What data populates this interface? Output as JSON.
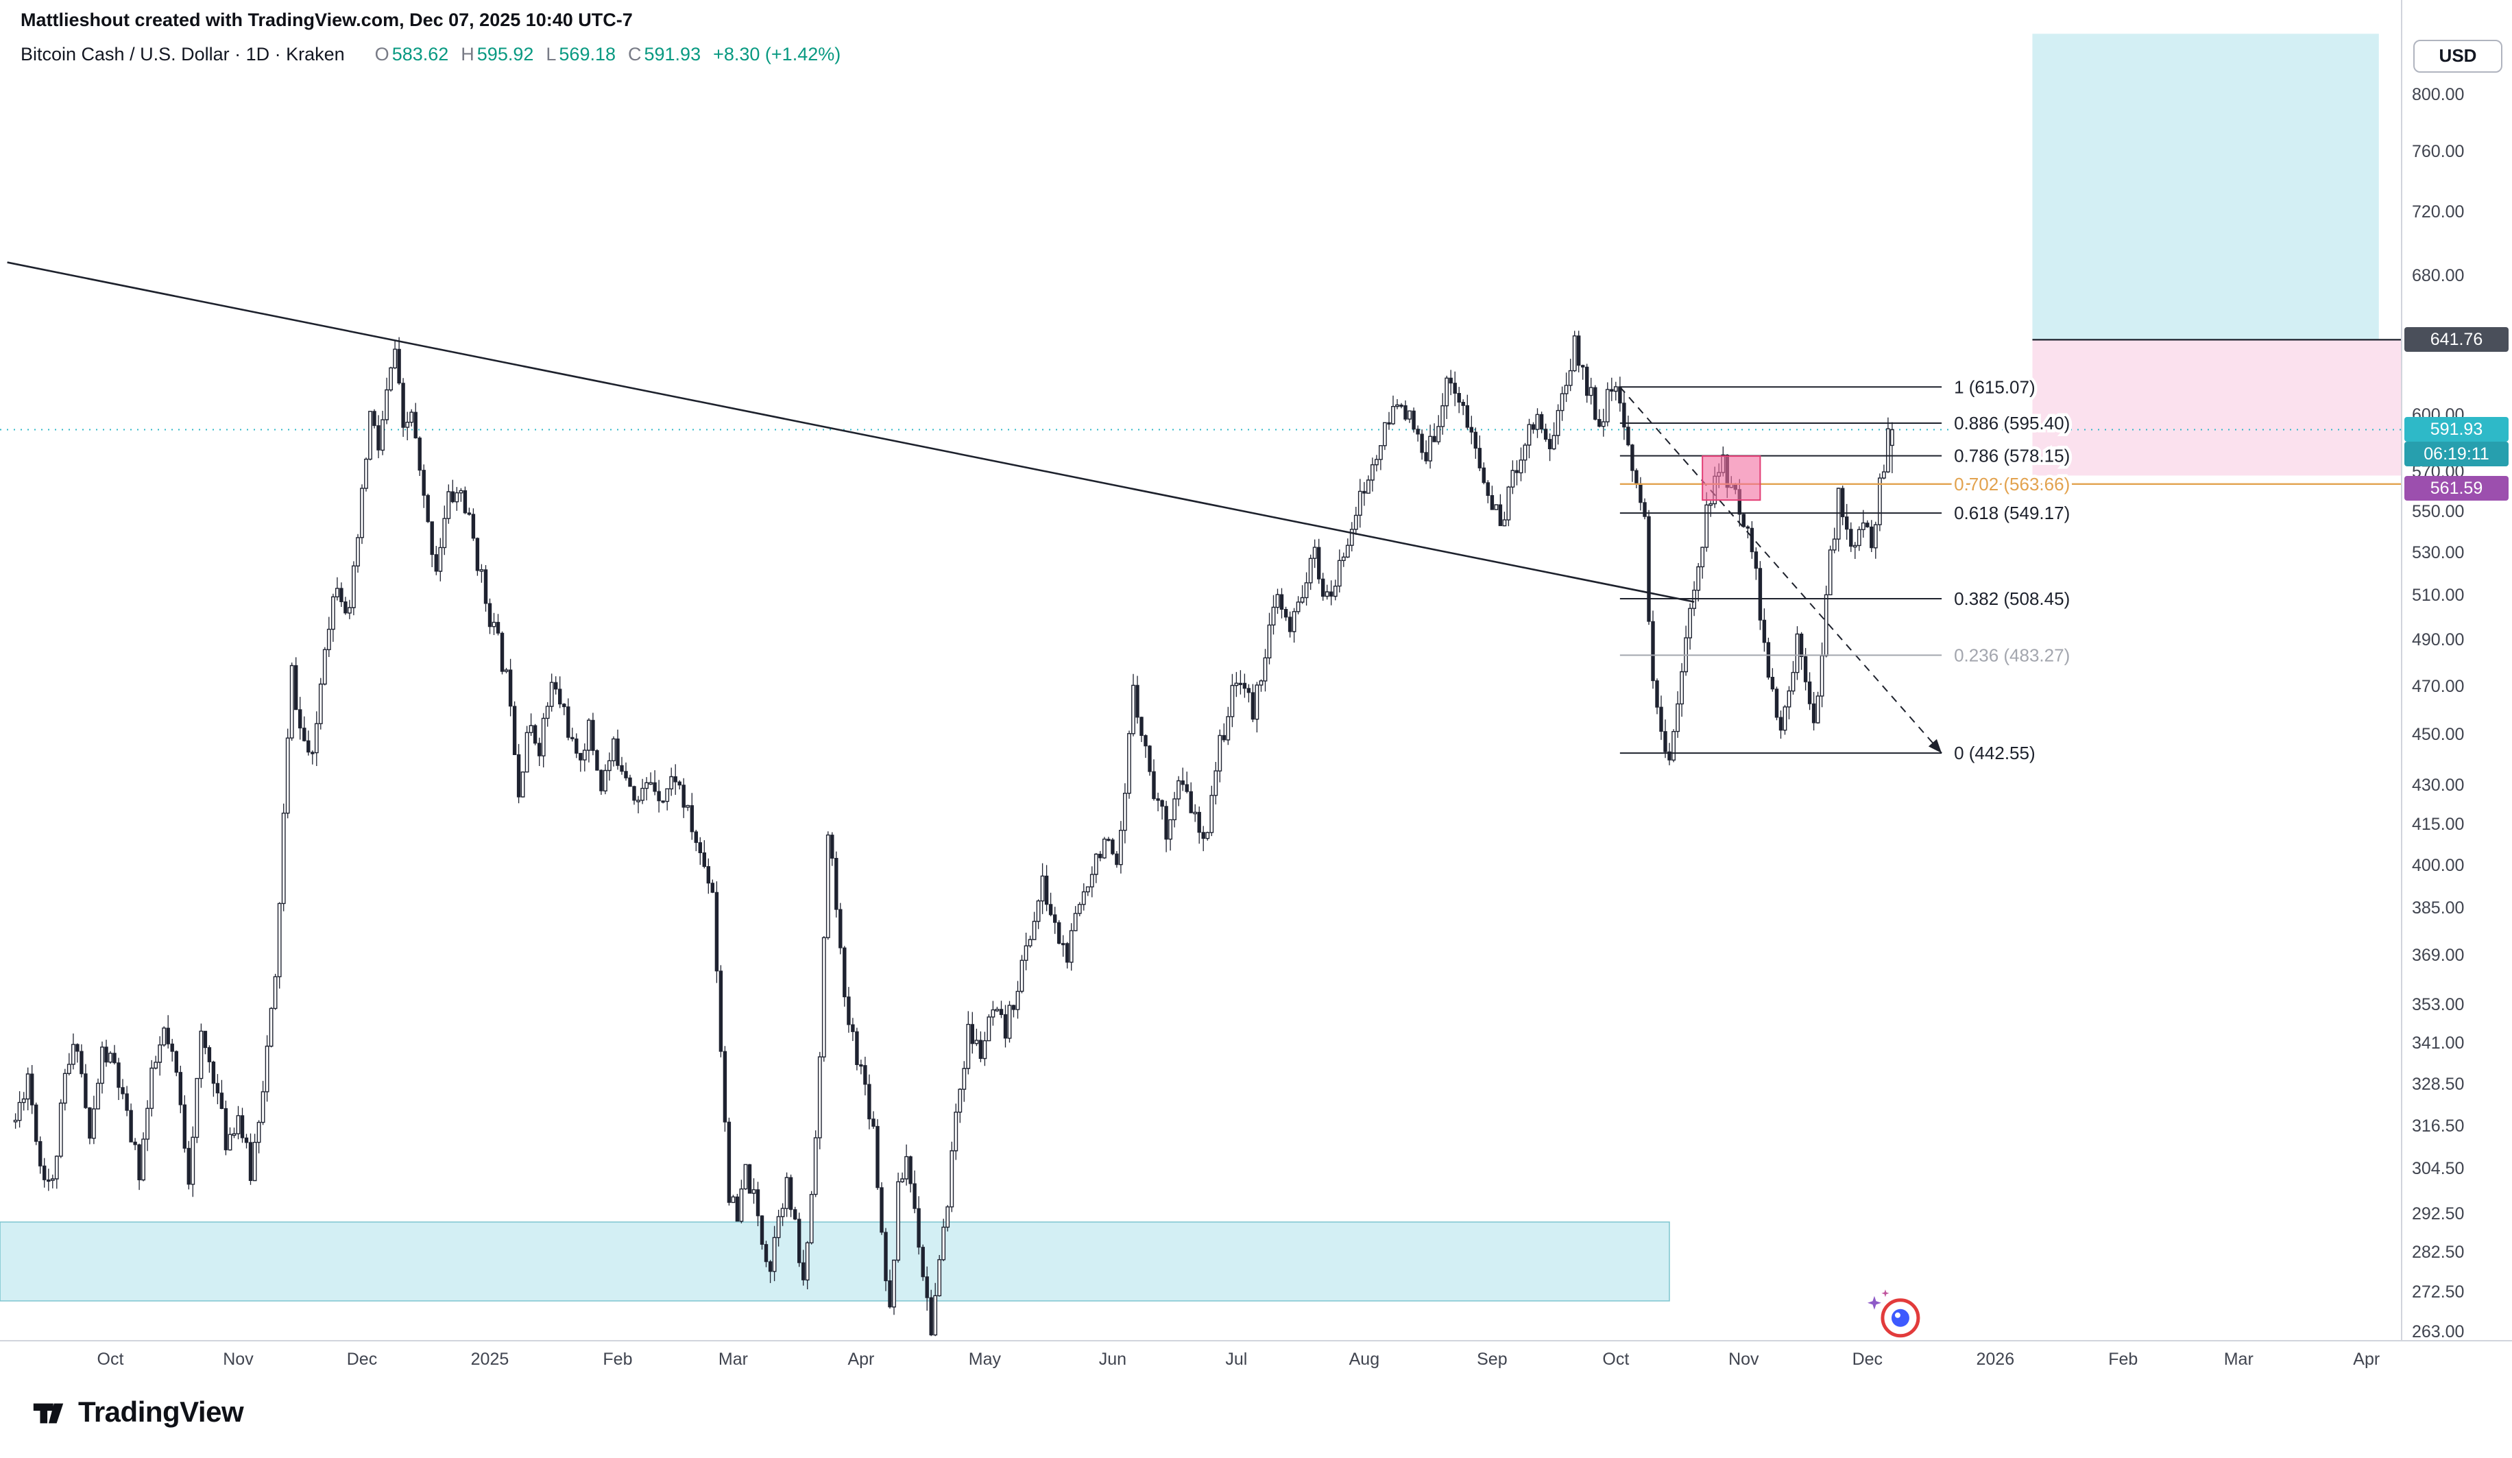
{
  "attribution": "Mattlieshout created with TradingView.com, Dec 07, 2025 10:40 UTC-7",
  "symbol_line": {
    "title": "Bitcoin Cash / U.S. Dollar · 1D · Kraken",
    "ohlc": [
      {
        "k": "O",
        "v": "583.62"
      },
      {
        "k": "H",
        "v": "595.92"
      },
      {
        "k": "L",
        "v": "569.18"
      },
      {
        "k": "C",
        "v": "591.93"
      }
    ],
    "change": "+8.30 (+1.42%)"
  },
  "price_axis": {
    "currency_label": "USD",
    "ticks": [
      {
        "label": "800.00",
        "price": 800
      },
      {
        "label": "760.00",
        "price": 760
      },
      {
        "label": "720.00",
        "price": 720
      },
      {
        "label": "680.00",
        "price": 680
      },
      {
        "label": "600.00",
        "price": 600
      },
      {
        "label": "570.00",
        "price": 570
      },
      {
        "label": "550.00",
        "price": 550
      },
      {
        "label": "530.00",
        "price": 530
      },
      {
        "label": "510.00",
        "price": 510
      },
      {
        "label": "490.00",
        "price": 490
      },
      {
        "label": "470.00",
        "price": 470
      },
      {
        "label": "450.00",
        "price": 450
      },
      {
        "label": "430.00",
        "price": 430
      },
      {
        "label": "415.00",
        "price": 415
      },
      {
        "label": "400.00",
        "price": 400
      },
      {
        "label": "385.00",
        "price": 385
      },
      {
        "label": "369.00",
        "price": 369
      },
      {
        "label": "353.00",
        "price": 353
      },
      {
        "label": "341.00",
        "price": 341
      },
      {
        "label": "328.50",
        "price": 328.5
      },
      {
        "label": "316.50",
        "price": 316.5
      },
      {
        "label": "304.50",
        "price": 304.5
      },
      {
        "label": "292.50",
        "price": 292.5
      },
      {
        "label": "282.50",
        "price": 282.5
      },
      {
        "label": "272.50",
        "price": 272.5
      },
      {
        "label": "263.00",
        "price": 263
      }
    ],
    "tags": [
      {
        "label": "641.76",
        "price": 641.76,
        "bg": "#4a4f5a",
        "name": "target-price-tag"
      },
      {
        "label": "591.93",
        "price": 591.93,
        "bg": "#2eb9c8",
        "name": "last-price-tag"
      },
      {
        "label": "06:19:11",
        "price": 591.93,
        "below": true,
        "bg": "#279fae",
        "name": "bar-countdown-tag"
      },
      {
        "label": "561.59",
        "price": 561.59,
        "bg": "#9c4fae",
        "name": "alert-price-tag"
      }
    ]
  },
  "time_axis": {
    "ticks": [
      {
        "label": "Oct",
        "date": "2024-10-01"
      },
      {
        "label": "Nov",
        "date": "2024-11-01"
      },
      {
        "label": "Dec",
        "date": "2024-12-01"
      },
      {
        "label": "2025",
        "date": "2025-01-01"
      },
      {
        "label": "Feb",
        "date": "2025-02-01"
      },
      {
        "label": "Mar",
        "date": "2025-03-01"
      },
      {
        "label": "Apr",
        "date": "2025-04-01"
      },
      {
        "label": "May",
        "date": "2025-05-01"
      },
      {
        "label": "Jun",
        "date": "2025-06-01"
      },
      {
        "label": "Jul",
        "date": "2025-07-01"
      },
      {
        "label": "Aug",
        "date": "2025-08-01"
      },
      {
        "label": "Sep",
        "date": "2025-09-01"
      },
      {
        "label": "Oct",
        "date": "2025-10-01"
      },
      {
        "label": "Nov",
        "date": "2025-11-01"
      },
      {
        "label": "Dec",
        "date": "2025-12-01"
      },
      {
        "label": "2026",
        "date": "2026-01-01"
      },
      {
        "label": "Feb",
        "date": "2026-02-01"
      },
      {
        "label": "Mar",
        "date": "2026-03-01"
      },
      {
        "label": "Apr",
        "date": "2026-04-01"
      }
    ]
  },
  "chart_data": {
    "type": "candlestick",
    "symbol": "Bitcoin Cash / U.S. Dollar",
    "timeframe": "1D",
    "exchange": "Kraken",
    "scale": "log",
    "ylim": [
      263,
      846
    ],
    "xlim": [
      "2024-09-06",
      "2026-04-30"
    ],
    "ohlc_today": {
      "open": 583.62,
      "high": 595.92,
      "low": 569.18,
      "close": 591.93,
      "change": 8.3,
      "change_pct": 1.42
    },
    "last_price_line": 591.93,
    "price_path_anchors": [
      [
        "2024-09-08",
        318
      ],
      [
        "2024-09-11",
        332
      ],
      [
        "2024-09-14",
        306
      ],
      [
        "2024-09-17",
        300
      ],
      [
        "2024-09-20",
        330
      ],
      [
        "2024-09-23",
        342
      ],
      [
        "2024-09-26",
        312
      ],
      [
        "2024-09-29",
        338
      ],
      [
        "2024-10-02",
        334
      ],
      [
        "2024-10-05",
        318
      ],
      [
        "2024-10-08",
        304
      ],
      [
        "2024-10-11",
        330
      ],
      [
        "2024-10-14",
        344
      ],
      [
        "2024-10-17",
        331
      ],
      [
        "2024-10-20",
        303
      ],
      [
        "2024-10-23",
        342
      ],
      [
        "2024-10-26",
        332
      ],
      [
        "2024-10-29",
        312
      ],
      [
        "2024-11-01",
        320
      ],
      [
        "2024-11-04",
        303
      ],
      [
        "2024-11-07",
        329
      ],
      [
        "2024-11-10",
        360
      ],
      [
        "2024-11-12",
        418
      ],
      [
        "2024-11-14",
        476
      ],
      [
        "2024-11-16",
        452
      ],
      [
        "2024-11-19",
        438
      ],
      [
        "2024-11-22",
        490
      ],
      [
        "2024-11-25",
        518
      ],
      [
        "2024-11-28",
        500
      ],
      [
        "2024-12-01",
        556
      ],
      [
        "2024-12-03",
        600
      ],
      [
        "2024-12-05",
        582
      ],
      [
        "2024-12-07",
        610
      ],
      [
        "2024-12-09",
        636
      ],
      [
        "2024-12-11",
        588
      ],
      [
        "2024-12-13",
        602
      ],
      [
        "2024-12-15",
        568
      ],
      [
        "2024-12-17",
        542
      ],
      [
        "2024-12-19",
        524
      ],
      [
        "2024-12-22",
        556
      ],
      [
        "2024-12-25",
        560
      ],
      [
        "2024-12-28",
        536
      ],
      [
        "2024-12-31",
        508
      ],
      [
        "2025-01-03",
        488
      ],
      [
        "2025-01-06",
        466
      ],
      [
        "2025-01-08",
        428
      ],
      [
        "2025-01-10",
        452
      ],
      [
        "2025-01-13",
        446
      ],
      [
        "2025-01-16",
        470
      ],
      [
        "2025-01-19",
        460
      ],
      [
        "2025-01-22",
        438
      ],
      [
        "2025-01-25",
        452
      ],
      [
        "2025-01-28",
        430
      ],
      [
        "2025-01-31",
        444
      ],
      [
        "2025-02-03",
        436
      ],
      [
        "2025-02-06",
        424
      ],
      [
        "2025-02-09",
        432
      ],
      [
        "2025-02-12",
        426
      ],
      [
        "2025-02-15",
        434
      ],
      [
        "2025-02-18",
        418
      ],
      [
        "2025-02-21",
        404
      ],
      [
        "2025-02-24",
        392
      ],
      [
        "2025-02-26",
        340
      ],
      [
        "2025-02-28",
        298
      ],
      [
        "2025-03-02",
        290
      ],
      [
        "2025-03-04",
        304
      ],
      [
        "2025-03-06",
        296
      ],
      [
        "2025-03-08",
        286
      ],
      [
        "2025-03-10",
        279
      ],
      [
        "2025-03-12",
        294
      ],
      [
        "2025-03-14",
        300
      ],
      [
        "2025-03-16",
        288
      ],
      [
        "2025-03-18",
        274
      ],
      [
        "2025-03-20",
        298
      ],
      [
        "2025-03-22",
        336
      ],
      [
        "2025-03-24",
        412
      ],
      [
        "2025-03-26",
        388
      ],
      [
        "2025-03-28",
        352
      ],
      [
        "2025-03-31",
        338
      ],
      [
        "2025-04-02",
        328
      ],
      [
        "2025-04-04",
        316
      ],
      [
        "2025-04-06",
        288
      ],
      [
        "2025-04-08",
        268
      ],
      [
        "2025-04-10",
        298
      ],
      [
        "2025-04-12",
        308
      ],
      [
        "2025-04-14",
        294
      ],
      [
        "2025-04-16",
        278
      ],
      [
        "2025-04-18",
        264
      ],
      [
        "2025-04-21",
        286
      ],
      [
        "2025-04-24",
        320
      ],
      [
        "2025-04-27",
        344
      ],
      [
        "2025-04-30",
        338
      ],
      [
        "2025-05-03",
        350
      ],
      [
        "2025-05-06",
        344
      ],
      [
        "2025-05-09",
        360
      ],
      [
        "2025-05-12",
        376
      ],
      [
        "2025-05-15",
        393
      ],
      [
        "2025-05-18",
        378
      ],
      [
        "2025-05-21",
        368
      ],
      [
        "2025-05-24",
        386
      ],
      [
        "2025-05-27",
        400
      ],
      [
        "2025-05-30",
        410
      ],
      [
        "2025-06-02",
        396
      ],
      [
        "2025-06-04",
        424
      ],
      [
        "2025-06-06",
        472
      ],
      [
        "2025-06-08",
        452
      ],
      [
        "2025-06-11",
        428
      ],
      [
        "2025-06-14",
        414
      ],
      [
        "2025-06-17",
        430
      ],
      [
        "2025-06-20",
        422
      ],
      [
        "2025-06-23",
        406
      ],
      [
        "2025-06-26",
        438
      ],
      [
        "2025-06-29",
        460
      ],
      [
        "2025-07-02",
        476
      ],
      [
        "2025-07-05",
        458
      ],
      [
        "2025-07-08",
        486
      ],
      [
        "2025-07-11",
        508
      ],
      [
        "2025-07-14",
        492
      ],
      [
        "2025-07-17",
        513
      ],
      [
        "2025-07-20",
        528
      ],
      [
        "2025-07-23",
        506
      ],
      [
        "2025-07-26",
        522
      ],
      [
        "2025-07-29",
        546
      ],
      [
        "2025-08-01",
        560
      ],
      [
        "2025-08-04",
        578
      ],
      [
        "2025-08-07",
        596
      ],
      [
        "2025-08-10",
        610
      ],
      [
        "2025-08-13",
        590
      ],
      [
        "2025-08-16",
        574
      ],
      [
        "2025-08-19",
        600
      ],
      [
        "2025-08-22",
        622
      ],
      [
        "2025-08-25",
        602
      ],
      [
        "2025-08-28",
        580
      ],
      [
        "2025-08-31",
        558
      ],
      [
        "2025-09-03",
        544
      ],
      [
        "2025-09-06",
        566
      ],
      [
        "2025-09-09",
        588
      ],
      [
        "2025-09-12",
        600
      ],
      [
        "2025-09-15",
        583
      ],
      [
        "2025-09-18",
        610
      ],
      [
        "2025-09-21",
        638
      ],
      [
        "2025-09-24",
        616
      ],
      [
        "2025-09-27",
        598
      ],
      [
        "2025-09-30",
        612
      ],
      [
        "2025-10-01",
        615
      ],
      [
        "2025-10-03",
        588
      ],
      [
        "2025-10-06",
        568
      ],
      [
        "2025-10-08",
        542
      ],
      [
        "2025-10-10",
        468
      ],
      [
        "2025-10-12",
        452
      ],
      [
        "2025-10-14",
        443
      ],
      [
        "2025-10-16",
        464
      ],
      [
        "2025-10-18",
        488
      ],
      [
        "2025-10-21",
        528
      ],
      [
        "2025-10-24",
        558
      ],
      [
        "2025-10-27",
        574
      ],
      [
        "2025-10-29",
        562
      ],
      [
        "2025-10-31",
        550
      ],
      [
        "2025-11-02",
        546
      ],
      [
        "2025-11-04",
        518
      ],
      [
        "2025-11-06",
        488
      ],
      [
        "2025-11-08",
        464
      ],
      [
        "2025-11-10",
        450
      ],
      [
        "2025-11-12",
        468
      ],
      [
        "2025-11-14",
        490
      ],
      [
        "2025-11-16",
        477
      ],
      [
        "2025-11-18",
        458
      ],
      [
        "2025-11-20",
        484
      ],
      [
        "2025-11-22",
        528
      ],
      [
        "2025-11-24",
        556
      ],
      [
        "2025-11-26",
        544
      ],
      [
        "2025-11-28",
        530
      ],
      [
        "2025-11-30",
        544
      ],
      [
        "2025-12-02",
        536
      ],
      [
        "2025-12-04",
        562
      ],
      [
        "2025-12-06",
        586
      ],
      [
        "2025-12-07",
        591.93
      ]
    ],
    "fib_retracement": {
      "high": 615.07,
      "low": 442.55,
      "x_start": "2025-10-02",
      "x_end": "2025-12-19",
      "levels": [
        {
          "ratio": "1",
          "price": 615.07,
          "label": "1 (615.07)"
        },
        {
          "ratio": "0.886",
          "price": 595.4,
          "label": "0.886 (595.40)"
        },
        {
          "ratio": "0.786",
          "price": 578.15,
          "label": "0.786 (578.15)"
        },
        {
          "ratio": "0.702",
          "price": 563.66,
          "label": "0.702 (563.66)",
          "color": "#e2a24e",
          "extend": true
        },
        {
          "ratio": "0.618",
          "price": 549.17,
          "label": "0.618 (549.17)"
        },
        {
          "ratio": "0.382",
          "price": 508.45,
          "label": "0.382 (508.45)"
        },
        {
          "ratio": "0.236",
          "price": 483.27,
          "label": "0.236 (483.27)",
          "color": "#a3a6ae"
        },
        {
          "ratio": "0",
          "price": 442.55,
          "label": "0 (442.55)"
        }
      ]
    },
    "zones": [
      {
        "name": "demand-zone-lower",
        "x1": "left",
        "x2": "2025-10-14",
        "p_top": 290.3,
        "p_bottom": 270.4,
        "fill": "rgba(168,224,233,0.5)",
        "stroke": "rgba(59,165,180,0.6)"
      },
      {
        "name": "target-zone-upper-cyan",
        "x1": "2026-01-10",
        "x2": "2026-04-04",
        "p_top": 845,
        "p_bottom": 641.76,
        "fill": "rgba(168,224,233,0.5)"
      },
      {
        "name": "target-zone-upper-pink",
        "x1": "2026-01-10",
        "x2": "axis",
        "p_top": 641.76,
        "p_bottom": 568,
        "fill": "rgba(244,170,205,0.35)"
      }
    ],
    "highlight_box": {
      "name": "entry-highlight-box",
      "x1": "2025-10-22",
      "x2": "2025-11-05",
      "p_top": 578,
      "p_bottom": 555.6,
      "fill": "rgba(242,110,160,0.6)",
      "stroke": "#e23d74"
    },
    "target_line": {
      "price": 641.76,
      "from": "2026-01-10"
    },
    "trendlines": [
      {
        "name": "descending-trendline",
        "style": "solid",
        "points": [
          [
            "2024-09-06",
            688
          ],
          [
            "2025-10-20",
            507
          ]
        ]
      },
      {
        "name": "fib-baseline-dashed",
        "style": "dashed",
        "arrow": true,
        "points": [
          [
            "2025-10-02",
            615.07
          ],
          [
            "2025-12-19",
            442.55
          ]
        ]
      }
    ],
    "sticker": {
      "date": "2025-12-09",
      "price": 266.3
    },
    "colors": {
      "candle": "#1e2230",
      "up_body": "#ffffff",
      "down_body": "#1e2230",
      "last_price": "#2eb9c8",
      "fib": "#1d212c",
      "fib_gold": "#e2a24e",
      "fib_gray": "#a3a6ae",
      "accent_green": "#089981"
    }
  },
  "logo": {
    "text": "TradingView"
  }
}
